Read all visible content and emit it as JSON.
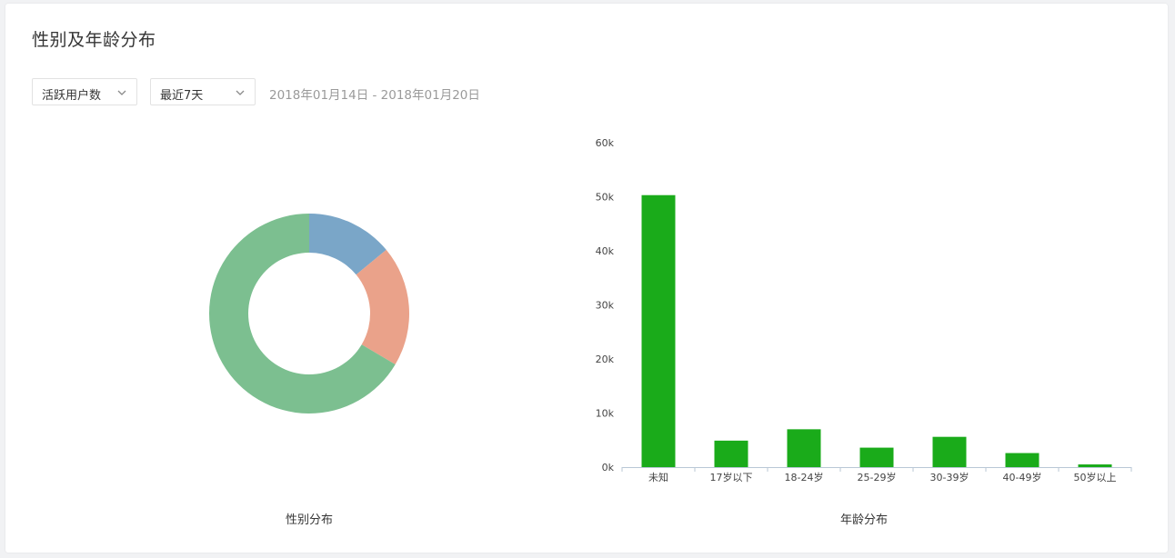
{
  "panel": {
    "title": "性别及年龄分布",
    "metric_select": "活跃用户数",
    "range_select": "最近7天",
    "date_range": "2018年01月14日 - 2018年01月20日"
  },
  "chart_data": [
    {
      "type": "pie",
      "title": "性别分布",
      "donut": true,
      "slices": [
        {
          "value": 14,
          "color": "#7aa6c8"
        },
        {
          "value": 19.5,
          "color": "#eaa28a"
        },
        {
          "value": 66.5,
          "color": "#7cbf90"
        }
      ]
    },
    {
      "type": "bar",
      "title": "年龄分布",
      "categories": [
        "未知",
        "17岁以下",
        "18-24岁",
        "25-29岁",
        "30-39岁",
        "40-49岁",
        "50岁以上"
      ],
      "values": [
        50300,
        4900,
        7000,
        3600,
        5600,
        2600,
        500
      ],
      "ylim": [
        0,
        60000
      ],
      "yticks": [
        0,
        10000,
        20000,
        30000,
        40000,
        50000,
        60000
      ],
      "ytick_labels": [
        "0k",
        "10k",
        "20k",
        "30k",
        "40k",
        "50k",
        "60k"
      ],
      "color": "#1aab1a",
      "grid": false
    }
  ]
}
